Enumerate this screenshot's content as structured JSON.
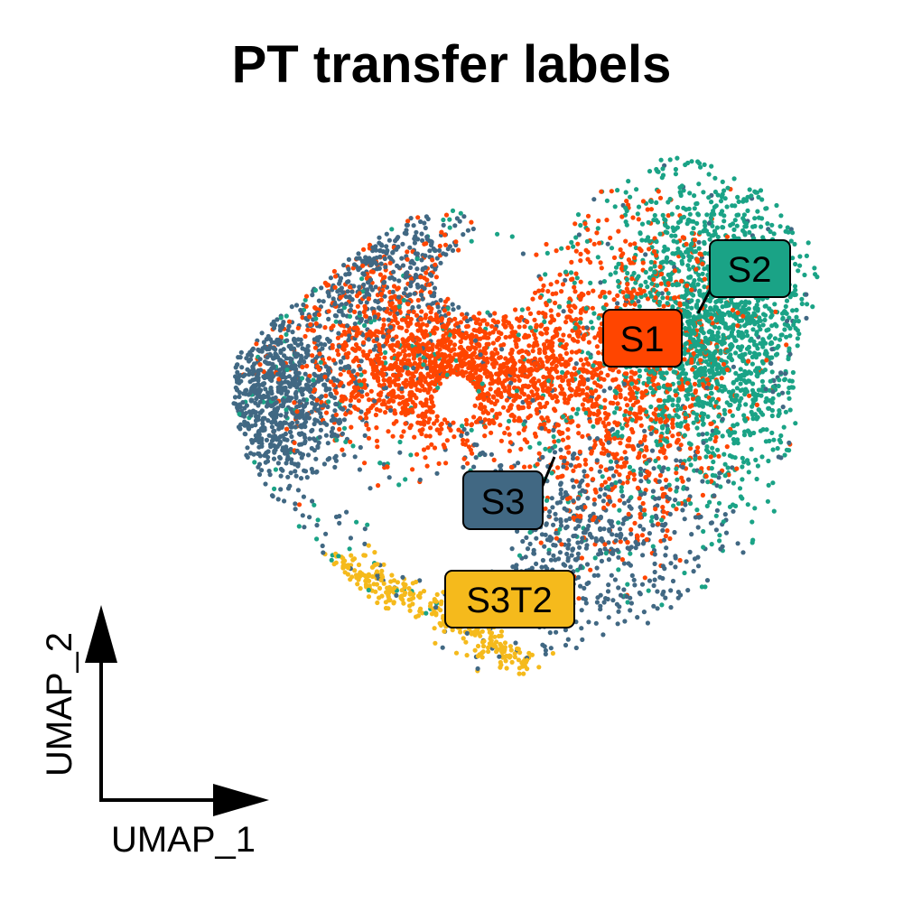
{
  "chart_data": {
    "type": "scatter",
    "title": "PT transfer labels",
    "xlabel": "UMAP_1",
    "ylabel": "UMAP_2",
    "grid": false,
    "legend": "none",
    "point_size": "small",
    "series": [
      {
        "name": "S3",
        "color": "#416883"
      },
      {
        "name": "S1",
        "color": "#FF4500"
      },
      {
        "name": "S2",
        "color": "#1AA386"
      },
      {
        "name": "S3T2",
        "color": "#F5BA1C"
      }
    ],
    "cluster_labels": [
      {
        "text": "S2",
        "series": "S2"
      },
      {
        "text": "S1",
        "series": "S1"
      },
      {
        "text": "S3",
        "series": "S3"
      },
      {
        "text": "S3T2",
        "series": "S3T2"
      }
    ]
  }
}
